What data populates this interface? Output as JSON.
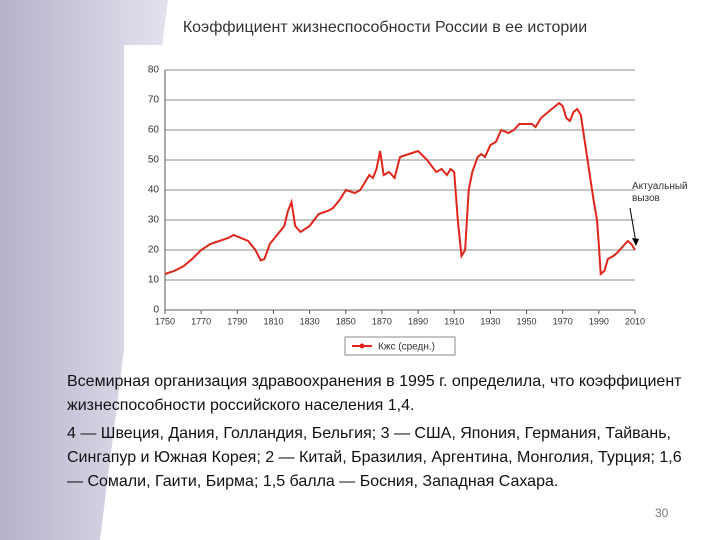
{
  "title": "Коэффициент жизнеспособности России в ее истории",
  "chart_data": {
    "type": "line",
    "x": [
      1750,
      1755,
      1760,
      1765,
      1770,
      1775,
      1780,
      1785,
      1788,
      1792,
      1796,
      1800,
      1803,
      1805,
      1808,
      1812,
      1816,
      1818,
      1820,
      1822,
      1825,
      1830,
      1835,
      1840,
      1843,
      1847,
      1850,
      1855,
      1858,
      1861,
      1863,
      1865,
      1867,
      1869,
      1871,
      1874,
      1877,
      1880,
      1885,
      1890,
      1895,
      1900,
      1903,
      1906,
      1908,
      1910,
      1912,
      1914,
      1916,
      1918,
      1920,
      1923,
      1925,
      1927,
      1930,
      1933,
      1936,
      1940,
      1943,
      1946,
      1950,
      1953,
      1955,
      1958,
      1962,
      1966,
      1968,
      1970,
      1972,
      1974,
      1976,
      1978,
      1980,
      1982,
      1985,
      1987,
      1989,
      1990,
      1991,
      1993,
      1995,
      1998,
      2000,
      2003,
      2006,
      2008,
      2010
    ],
    "series": [
      {
        "name": "Кжс (средн.)",
        "color": "#e0261a",
        "values": [
          12,
          13,
          14.5,
          17,
          20,
          22,
          23,
          24,
          25,
          24,
          23,
          20,
          16.5,
          17,
          22,
          25,
          28,
          33,
          36,
          28,
          26,
          28,
          32,
          33,
          34,
          37,
          40,
          39,
          40,
          43,
          45,
          44,
          47,
          53,
          45,
          46,
          44,
          51,
          52,
          53,
          50,
          46,
          47,
          45,
          47,
          46,
          30,
          18,
          20,
          40,
          46,
          51,
          52,
          51,
          55,
          56,
          60,
          59,
          60,
          62,
          62,
          62,
          61,
          64,
          66,
          68,
          69,
          68,
          64,
          63,
          66,
          67,
          65,
          57,
          45,
          37,
          30,
          22,
          12,
          13,
          17,
          18,
          19,
          21,
          23,
          22,
          20
        ]
      }
    ],
    "xlim": [
      1750,
      2010
    ],
    "xticks": [
      1750,
      1770,
      1790,
      1810,
      1830,
      1850,
      1870,
      1890,
      1910,
      1930,
      1950,
      1970,
      1990,
      2010
    ],
    "ylim": [
      0,
      80
    ],
    "yticks": [
      0,
      10,
      20,
      30,
      40,
      50,
      60,
      70,
      80
    ],
    "grid": true,
    "legend": "bottom",
    "annotation": "Актуальный вызов"
  },
  "paragraphs": [
    "Всемирная организация здравоохранения в 1995 г. определила, что коэффициент жизнеспособности российского населения 1,4.",
    "4 — Швеция, Дания, Голландия, Бельгия; 3 — США, Япония, Германия, Тайвань, Сингапур и Южная Корея; 2 — Китай, Бразилия, Аргентина, Монголия, Турция; 1,6 — Сомали, Гаити, Бирма; 1,5 балла — Босния, Западная Сахара."
  ],
  "page_number": "30"
}
